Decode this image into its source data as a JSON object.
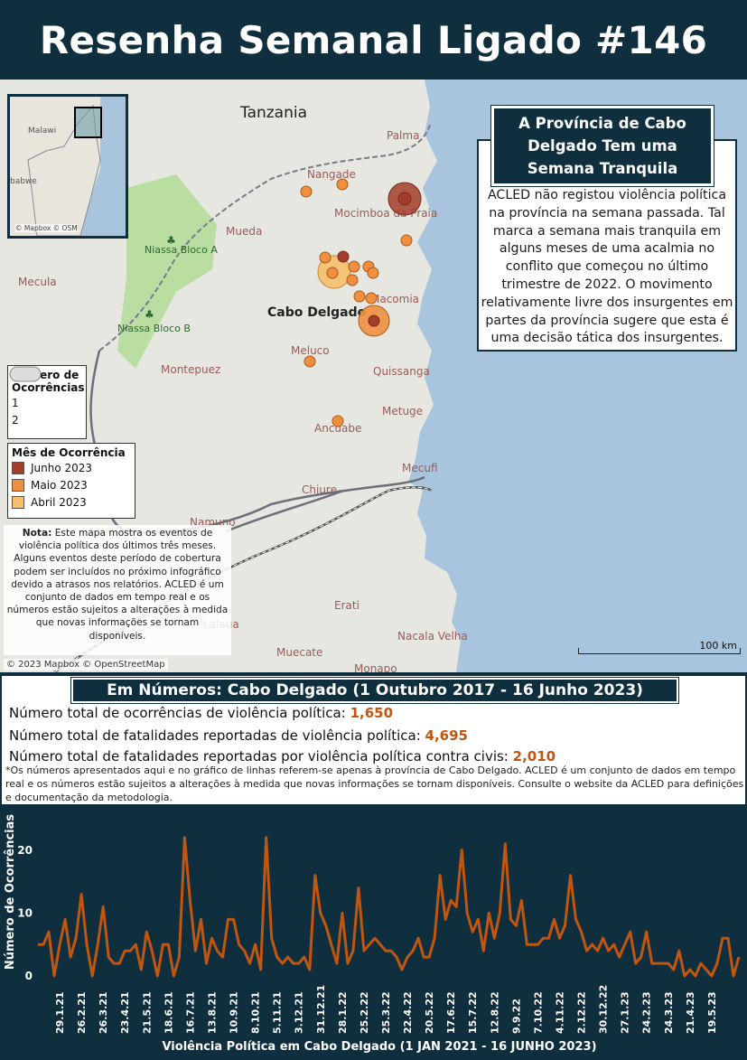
{
  "header": {
    "title": "Resenha Semanal Ligado #146"
  },
  "map": {
    "place_labels": [
      {
        "id": "tanzania",
        "text": "Tanzania"
      },
      {
        "id": "palma",
        "text": "Palma"
      },
      {
        "id": "nangade",
        "text": "Nangade"
      },
      {
        "id": "mocimboa",
        "text": "Mocimboa da Praia"
      },
      {
        "id": "mueda",
        "text": "Mueda"
      },
      {
        "id": "niassa-a",
        "text": "Niassa Bloco A"
      },
      {
        "id": "mecula",
        "text": "Mecula"
      },
      {
        "id": "niassa-b",
        "text": "Niassa Bloco B"
      },
      {
        "id": "cabo-delgado",
        "text": "Cabo Delgado"
      },
      {
        "id": "macomia",
        "text": "Macomia"
      },
      {
        "id": "meluco",
        "text": "Meluco"
      },
      {
        "id": "montepuez",
        "text": "Montepuez"
      },
      {
        "id": "quissanga",
        "text": "Quissanga"
      },
      {
        "id": "metuge",
        "text": "Metuge"
      },
      {
        "id": "ancuabe",
        "text": "Ancuabe"
      },
      {
        "id": "mecufi",
        "text": "Mecufi"
      },
      {
        "id": "chiure",
        "text": "Chiure"
      },
      {
        "id": "namuno",
        "text": "Namuno"
      },
      {
        "id": "erati",
        "text": "Erati"
      },
      {
        "id": "nacala",
        "text": "Nacala Velha"
      },
      {
        "id": "muecate",
        "text": "Muecate"
      },
      {
        "id": "monapo",
        "text": "Monapo"
      },
      {
        "id": "lalaua",
        "text": "Lalaua"
      }
    ],
    "inset_labels": {
      "malawi": "Malawi",
      "zimbabwe": "babwe",
      "attribution": "© Mapbox © OSM"
    },
    "attribution": "© 2023 Mapbox © OpenStreetMap",
    "scale_label": "100 km",
    "colors": {
      "june": "#a33d2a",
      "may": "#ef8f3f",
      "april": "#f6bf6c",
      "sea": "#a9c4dd",
      "land": "#e5e7e0",
      "park": "#b5dd9a"
    }
  },
  "callout": {
    "title": "A Província de Cabo Delgado Tem uma Semana Tranquila",
    "body": "ACLED não registou violência política na província na semana passada. Tal marca a semana mais tranquila em alguns meses de uma acalmia no conflito que começou no último trimestre de 2022. O movimento relativamente livre dos insurgentes em partes da província sugere que esta é uma decisão tática dos insurgentes."
  },
  "legend": {
    "count_title": "Número de Ocorrências",
    "count_items": [
      "1",
      "2"
    ],
    "month_title": "Mês de Ocorrência",
    "month_items": [
      "Junho 2023",
      "Maio 2023",
      "Abril 2023"
    ]
  },
  "note": {
    "label": "Nota:",
    "text": "Este mapa mostra os eventos de violência política dos últimos três meses. Alguns eventos deste período de cobertura podem ser incluídos no próximo infográfico devido a atrasos nos relatórios. ACLED é um conjunto de dados em tempo real e os números estão sujeitos a alterações à medida que novas informações se tornam disponíveis."
  },
  "numbers": {
    "title": "Em Números: Cabo Delgado (1 Outubro 2017 - 16 Junho 2023)",
    "stat1_label": "Número total de ocorrências de violência política:",
    "stat1_value": "1,650",
    "stat2_label": "Número total de fatalidades reportadas de violência política:",
    "stat2_value": "4,695",
    "stat3_label": "Número total de fatalidades reportadas por violência política contra civis:",
    "stat3_value": "2,010",
    "footnote": "*Os números apresentados aqui e no gráfico de linhas referem-se apenas à província de Cabo Delgado. ACLED é um conjunto de dados em tempo real e os números estão sujeitos a alterações à medida que novas informações se tornam disponíveis. Consulte o website da ACLED para definições e documentação da metodologia."
  },
  "chart_data": {
    "type": "line",
    "title": "",
    "xlabel": "Violência Política em Cabo Delgado (1 JAN 2021 - 16 JUNHO 2023)",
    "ylabel": "Número de Ocorrências",
    "ylim": [
      0,
      25
    ],
    "yticks": [
      0,
      10,
      20
    ],
    "grid": false,
    "line_color": "#c0560f",
    "tick_labels": [
      "29.1.21",
      "26.2.21",
      "26.3.21",
      "23.4.21",
      "21.5.21",
      "18.6.21",
      "16.7.21",
      "13.8.21",
      "10.9.21",
      "8.10.21",
      "5.11.21",
      "3.12.21",
      "31.12.21",
      "28.1.22",
      "25.2.22",
      "25.3.22",
      "22.4.22",
      "20.5.22",
      "17.6.22",
      "15.7.22",
      "12.8.22",
      "9.9.22",
      "7.10.22",
      "4.11.22",
      "2.12.22",
      "30.12.22",
      "27.1.23",
      "24.2.23",
      "24.3.23",
      "21.4.23",
      "19.5.23"
    ],
    "values": [
      5,
      5,
      7,
      0,
      5,
      9,
      3,
      6,
      13,
      5,
      0,
      5,
      11,
      3,
      2,
      2,
      4,
      4,
      5,
      1,
      7,
      4,
      0,
      5,
      5,
      0,
      3,
      22,
      12,
      4,
      9,
      2,
      6,
      4,
      3,
      9,
      9,
      5,
      4,
      2,
      5,
      1,
      22,
      6,
      3,
      2,
      3,
      2,
      2,
      3,
      1,
      16,
      10,
      8,
      5,
      2,
      10,
      2,
      4,
      14,
      4,
      5,
      6,
      5,
      4,
      4,
      3,
      1,
      3,
      4,
      6,
      3,
      3,
      6,
      16,
      9,
      12,
      11,
      20,
      10,
      7,
      9,
      4,
      10,
      6,
      10,
      21,
      9,
      8,
      12,
      5,
      5,
      5,
      6,
      6,
      9,
      6,
      8,
      16,
      9,
      7,
      4,
      5,
      4,
      6,
      4,
      5,
      3,
      5,
      7,
      2,
      3,
      7,
      2,
      2,
      2,
      2,
      1,
      4,
      0,
      1,
      0,
      2,
      1,
      0,
      2,
      6,
      6,
      0,
      3
    ]
  }
}
